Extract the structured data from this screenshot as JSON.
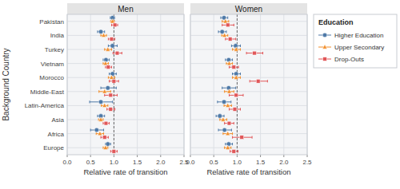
{
  "chart_data": {
    "type": "dot",
    "orientation": "horizontal",
    "categories": [
      "Pakistan",
      "India",
      "Turkey",
      "Vietnam",
      "Morocco",
      "Middle-East",
      "Latin-America",
      "Asia",
      "Africa",
      "Europe"
    ],
    "xlabel": "Relative rate of transition",
    "ylabel": "Background Country",
    "xlim": [
      0.0,
      2.5
    ],
    "xticks": [
      {
        "value": 0.0,
        "label": "0.0"
      },
      0.5,
      {
        "value": 1.0,
        "label": "1.0"
      },
      1.5,
      {
        "value": 2.0,
        "label": "2.0"
      },
      2.5
    ],
    "grid": true,
    "reference_x": 1.0,
    "legend": "right",
    "legend_title": "Education",
    "series": [
      {
        "name": "Higher Education",
        "marker": "circle",
        "color": "#4e79a7"
      },
      {
        "name": "Upper Secondary",
        "marker": "triangle",
        "color": "#f28e2b"
      },
      {
        "name": "Drop-Outs",
        "marker": "square",
        "color": "#e15759"
      }
    ],
    "panels": [
      {
        "title": "Men",
        "series": [
          {
            "values": [
              0.97,
              0.72,
              0.97,
              0.83,
              0.97,
              0.87,
              0.72,
              0.72,
              0.63,
              0.87
            ],
            "lo": [
              0.92,
              0.65,
              0.88,
              0.77,
              0.9,
              0.72,
              0.48,
              0.65,
              0.5,
              0.82
            ],
            "hi": [
              1.02,
              0.8,
              1.07,
              0.9,
              1.05,
              1.05,
              0.97,
              0.8,
              0.78,
              0.93
            ]
          },
          {
            "values": [
              0.97,
              0.78,
              0.87,
              0.82,
              0.95,
              0.8,
              0.8,
              0.72,
              0.7,
              0.82
            ],
            "lo": [
              0.93,
              0.72,
              0.8,
              0.77,
              0.88,
              0.68,
              0.73,
              0.67,
              0.62,
              0.77
            ],
            "hi": [
              1.01,
              0.84,
              0.95,
              0.88,
              1.02,
              0.93,
              0.87,
              0.77,
              0.78,
              0.87
            ]
          },
          {
            "values": [
              1.02,
              0.95,
              1.07,
              0.88,
              1.0,
              0.93,
              0.93,
              0.83,
              0.8,
              1.0
            ],
            "lo": [
              0.95,
              0.88,
              0.98,
              0.82,
              0.9,
              0.8,
              0.85,
              0.77,
              0.72,
              0.93
            ],
            "hi": [
              1.08,
              1.02,
              1.17,
              0.95,
              1.1,
              1.07,
              1.02,
              0.9,
              0.88,
              1.07
            ]
          }
        ]
      },
      {
        "title": "Women",
        "series": [
          {
            "values": [
              0.72,
              0.68,
              0.97,
              0.82,
              0.98,
              0.82,
              0.72,
              0.63,
              0.73,
              0.82
            ],
            "lo": [
              0.65,
              0.6,
              0.88,
              0.75,
              0.9,
              0.68,
              0.58,
              0.55,
              0.6,
              0.75
            ],
            "hi": [
              0.8,
              0.77,
              1.07,
              0.9,
              1.07,
              0.97,
              0.87,
              0.72,
              0.88,
              0.9
            ]
          },
          {
            "values": [
              0.75,
              0.73,
              0.98,
              0.83,
              0.98,
              0.83,
              0.8,
              0.7,
              0.8,
              0.8
            ],
            "lo": [
              0.68,
              0.67,
              0.9,
              0.77,
              0.9,
              0.73,
              0.72,
              0.63,
              0.7,
              0.73
            ],
            "hi": [
              0.82,
              0.8,
              1.07,
              0.9,
              1.07,
              0.93,
              0.88,
              0.78,
              0.9,
              0.87
            ]
          },
          {
            "values": [
              0.8,
              0.85,
              1.37,
              0.93,
              1.45,
              0.98,
              0.95,
              0.83,
              1.1,
              0.93
            ],
            "lo": [
              0.68,
              0.75,
              1.2,
              0.83,
              1.27,
              0.83,
              0.83,
              0.73,
              0.9,
              0.85
            ],
            "hi": [
              0.93,
              0.97,
              1.55,
              1.03,
              1.65,
              1.13,
              1.07,
              0.93,
              1.32,
              1.02
            ]
          }
        ]
      }
    ]
  }
}
